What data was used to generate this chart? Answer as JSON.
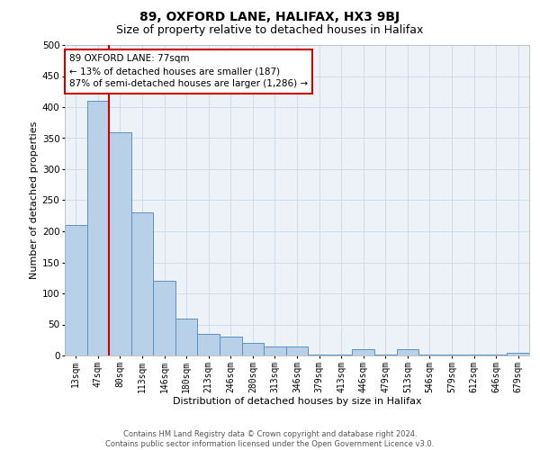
{
  "title": "89, OXFORD LANE, HALIFAX, HX3 9BJ",
  "subtitle": "Size of property relative to detached houses in Halifax",
  "xlabel": "Distribution of detached houses by size in Halifax",
  "ylabel": "Number of detached properties",
  "categories": [
    "13sqm",
    "47sqm",
    "80sqm",
    "113sqm",
    "146sqm",
    "180sqm",
    "213sqm",
    "246sqm",
    "280sqm",
    "313sqm",
    "346sqm",
    "379sqm",
    "413sqm",
    "446sqm",
    "479sqm",
    "513sqm",
    "546sqm",
    "579sqm",
    "612sqm",
    "646sqm",
    "679sqm"
  ],
  "values": [
    210,
    410,
    360,
    230,
    120,
    60,
    35,
    30,
    20,
    15,
    15,
    2,
    2,
    10,
    2,
    10,
    2,
    2,
    2,
    2,
    5
  ],
  "bar_color": "#b8d0e8",
  "bar_edge_color": "#5a90c0",
  "red_line_index": 2,
  "annotation_text": "89 OXFORD LANE: 77sqm\n← 13% of detached houses are smaller (187)\n87% of semi-detached houses are larger (1,286) →",
  "annotation_box_facecolor": "#ffffff",
  "annotation_box_edgecolor": "#cc0000",
  "footer_text": "Contains HM Land Registry data © Crown copyright and database right 2024.\nContains public sector information licensed under the Open Government Licence v3.0.",
  "grid_color": "#c8d8ea",
  "bg_color": "#edf2f8",
  "ylim": [
    0,
    500
  ],
  "yticks": [
    0,
    50,
    100,
    150,
    200,
    250,
    300,
    350,
    400,
    450,
    500
  ],
  "title_fontsize": 10,
  "subtitle_fontsize": 9,
  "axis_label_fontsize": 8,
  "tick_fontsize": 7,
  "footer_fontsize": 6,
  "annotation_fontsize": 7.5
}
